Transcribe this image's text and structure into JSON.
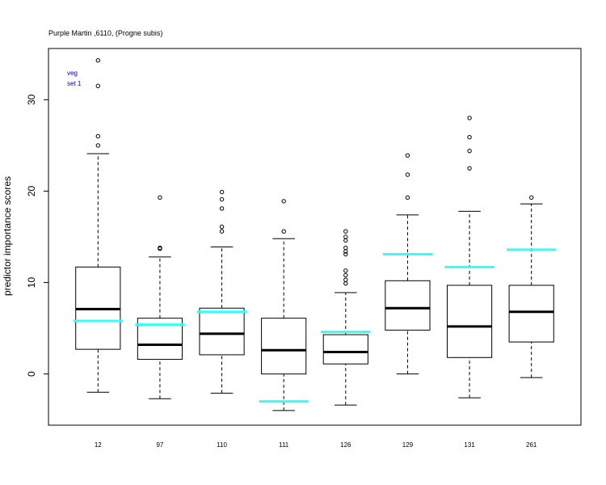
{
  "chart_data": {
    "type": "boxplot",
    "title": "Purple Martin ,6110, (Progne subis)",
    "xlabel": "",
    "ylabel": "predictor importance scores",
    "annotation": [
      "veg",
      "set 1"
    ],
    "ylim": [
      -5.6,
      35.6
    ],
    "yticks": [
      0,
      10,
      20,
      30
    ],
    "categories": [
      "12",
      "97",
      "110",
      "111",
      "126",
      "129",
      "131",
      "261"
    ],
    "boxes": [
      {
        "category": "12",
        "whisker_low": -2.0,
        "q1": 2.7,
        "median": 7.1,
        "q3": 11.7,
        "whisker_high": 24.1,
        "outliers": [
          25.0,
          26.0,
          31.5,
          34.3
        ],
        "reference": 5.8
      },
      {
        "category": "97",
        "whisker_low": -2.7,
        "q1": 1.6,
        "median": 3.2,
        "q3": 6.1,
        "whisker_high": 12.8,
        "outliers": [
          13.7,
          13.8,
          19.3
        ],
        "reference": 5.4
      },
      {
        "category": "110",
        "whisker_low": -2.1,
        "q1": 2.1,
        "median": 4.4,
        "q3": 7.2,
        "whisker_high": 13.9,
        "outliers": [
          15.6,
          16.1,
          18.1,
          19.1,
          19.9
        ],
        "reference": 6.8
      },
      {
        "category": "111",
        "whisker_low": -4.0,
        "q1": 0.0,
        "median": 2.6,
        "q3": 6.1,
        "whisker_high": 14.8,
        "outliers": [
          15.6,
          18.9
        ],
        "reference": -3.0
      },
      {
        "category": "126",
        "whisker_low": -3.4,
        "q1": 1.1,
        "median": 2.4,
        "q3": 4.3,
        "whisker_high": 8.9,
        "outliers": [
          9.9,
          10.3,
          10.8,
          11.3,
          13.1,
          13.4,
          13.8,
          14.6,
          15.0,
          15.6
        ],
        "reference": 4.6
      },
      {
        "category": "129",
        "whisker_low": 0.0,
        "q1": 4.8,
        "median": 7.2,
        "q3": 10.2,
        "whisker_high": 17.4,
        "outliers": [
          19.3,
          21.8,
          23.9
        ],
        "reference": 13.1
      },
      {
        "category": "131",
        "whisker_low": -2.6,
        "q1": 1.8,
        "median": 5.2,
        "q3": 9.7,
        "whisker_high": 17.8,
        "outliers": [
          22.5,
          24.4,
          25.9,
          28.0
        ],
        "reference": 11.7
      },
      {
        "category": "261",
        "whisker_low": -0.4,
        "q1": 3.5,
        "median": 6.8,
        "q3": 9.7,
        "whisker_high": 18.6,
        "outliers": [
          19.3
        ],
        "reference": 13.6
      }
    ],
    "colors": {
      "box": "#000000",
      "median": "#000000",
      "reference_line": "#33ffff",
      "annotation": "#0000cc"
    },
    "grid": false,
    "legend": "none"
  }
}
